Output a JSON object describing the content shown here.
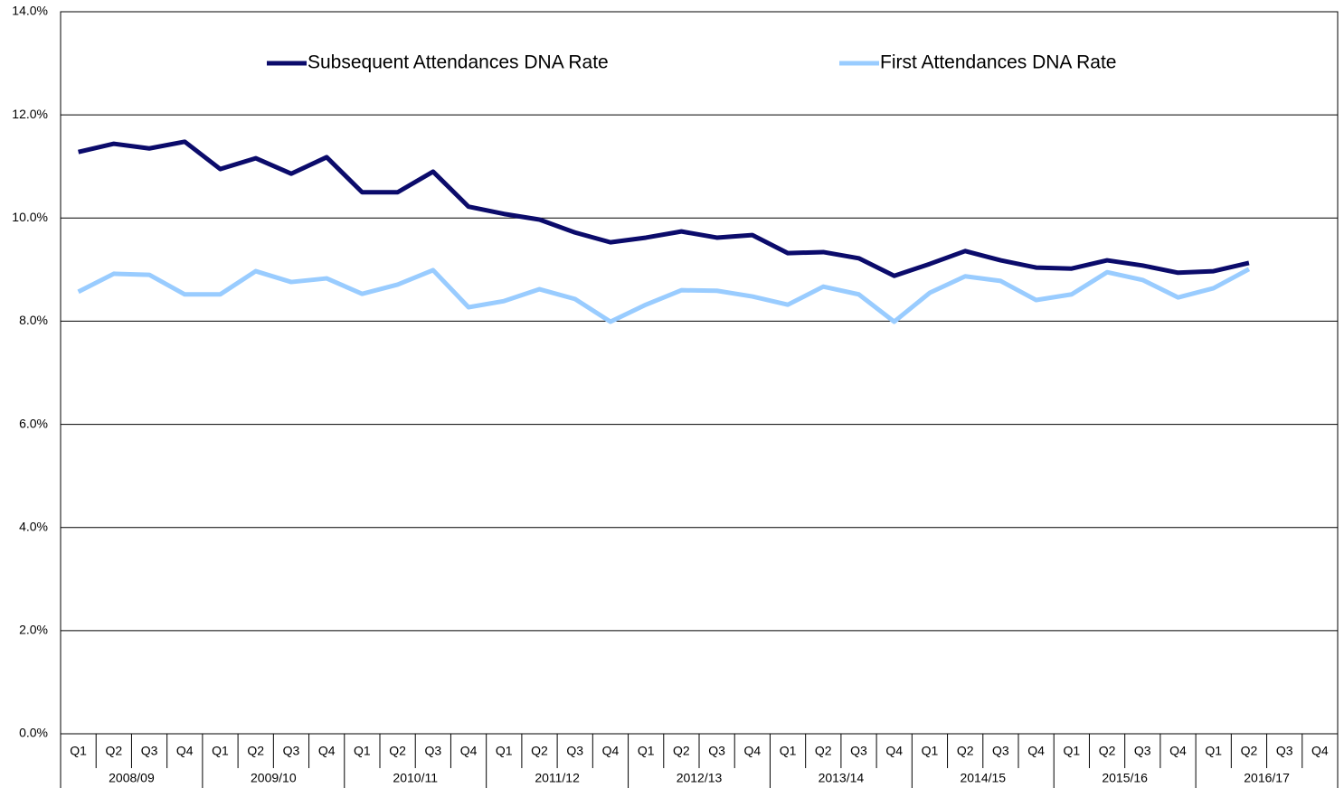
{
  "chart_data": {
    "type": "line",
    "categories": [
      "Q1",
      "Q2",
      "Q3",
      "Q4",
      "Q1",
      "Q2",
      "Q3",
      "Q4",
      "Q1",
      "Q2",
      "Q3",
      "Q4",
      "Q1",
      "Q2",
      "Q3",
      "Q4",
      "Q1",
      "Q2",
      "Q3",
      "Q4",
      "Q1",
      "Q2",
      "Q3",
      "Q4",
      "Q1",
      "Q2",
      "Q3",
      "Q4",
      "Q1",
      "Q2",
      "Q3",
      "Q4",
      "Q1",
      "Q2",
      "Q3",
      "Q4"
    ],
    "category_groups": [
      "2008/09",
      "2009/10",
      "2010/11",
      "2011/12",
      "2012/13",
      "2013/14",
      "2014/15",
      "2015/16",
      "2016/17"
    ],
    "series": [
      {
        "name": "Subsequent Attendances DNA Rate",
        "color": "#0b0b6b",
        "values": [
          11.28,
          11.44,
          11.35,
          11.48,
          10.95,
          11.16,
          10.86,
          11.18,
          10.5,
          10.5,
          10.9,
          10.22,
          10.08,
          9.97,
          9.72,
          9.53,
          9.62,
          9.74,
          9.62,
          9.67,
          9.32,
          9.34,
          9.22,
          8.88,
          9.11,
          9.36,
          9.18,
          9.04,
          9.02,
          9.18,
          9.08,
          8.94,
          8.97,
          9.13,
          null,
          null
        ]
      },
      {
        "name": "First Attendances DNA Rate",
        "color": "#99ccff",
        "values": [
          8.57,
          8.92,
          8.9,
          8.52,
          8.52,
          8.97,
          8.76,
          8.83,
          8.53,
          8.71,
          8.99,
          8.27,
          8.39,
          8.62,
          8.43,
          7.99,
          8.32,
          8.6,
          8.59,
          8.48,
          8.32,
          8.67,
          8.52,
          7.99,
          8.55,
          8.87,
          8.78,
          8.41,
          8.52,
          8.95,
          8.8,
          8.46,
          8.64,
          9.01,
          null,
          null
        ]
      }
    ],
    "ylim": [
      0,
      14
    ],
    "yticks": [
      {
        "value": 0,
        "label": "0.0%"
      },
      {
        "value": 2,
        "label": "2.0%"
      },
      {
        "value": 4,
        "label": "4.0%"
      },
      {
        "value": 6,
        "label": "6.0%"
      },
      {
        "value": 8,
        "label": "8.0%"
      },
      {
        "value": 10,
        "label": "10.0%"
      },
      {
        "value": 12,
        "label": "12.0%"
      },
      {
        "value": 14,
        "label": "14.0%"
      }
    ],
    "grid": true,
    "legend": "top"
  }
}
